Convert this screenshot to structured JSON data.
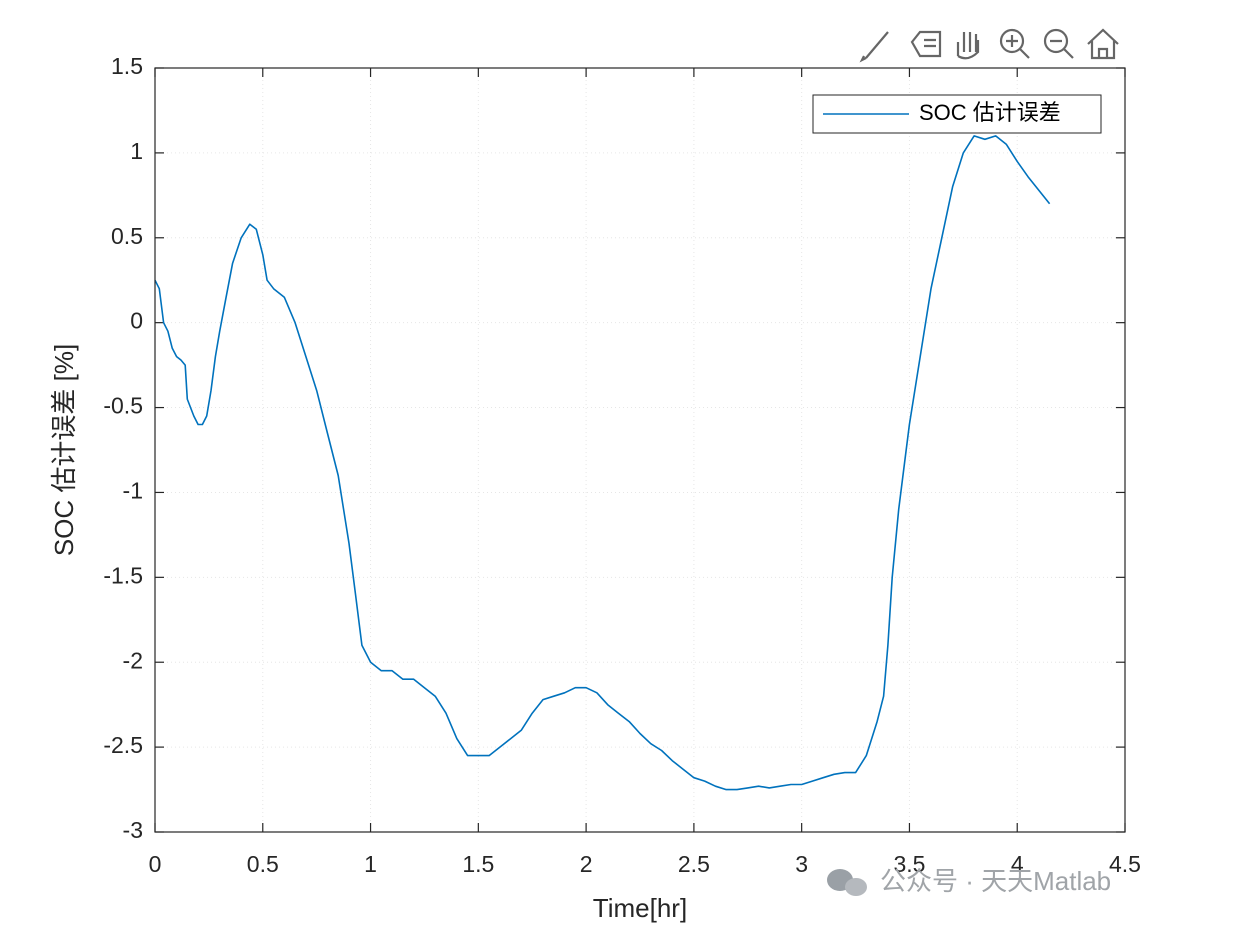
{
  "chart_data": {
    "type": "line",
    "xlabel": "Time[hr]",
    "ylabel": "SOC 估计误差 [%]",
    "watermark": "公众号 · 天天Matlab",
    "x": [
      0,
      0.02,
      0.04,
      0.06,
      0.08,
      0.1,
      0.12,
      0.14,
      0.15,
      0.18,
      0.2,
      0.22,
      0.24,
      0.26,
      0.28,
      0.3,
      0.33,
      0.36,
      0.4,
      0.44,
      0.47,
      0.5,
      0.52,
      0.55,
      0.6,
      0.65,
      0.7,
      0.75,
      0.8,
      0.85,
      0.9,
      0.93,
      0.96,
      1.0,
      1.05,
      1.1,
      1.15,
      1.2,
      1.25,
      1.3,
      1.35,
      1.4,
      1.45,
      1.5,
      1.55,
      1.6,
      1.65,
      1.7,
      1.75,
      1.8,
      1.85,
      1.9,
      1.95,
      2.0,
      2.05,
      2.1,
      2.15,
      2.2,
      2.25,
      2.3,
      2.35,
      2.4,
      2.45,
      2.5,
      2.55,
      2.6,
      2.65,
      2.7,
      2.75,
      2.8,
      2.85,
      2.9,
      2.95,
      3.0,
      3.05,
      3.1,
      3.15,
      3.2,
      3.25,
      3.3,
      3.35,
      3.38,
      3.4,
      3.42,
      3.45,
      3.48,
      3.5,
      3.55,
      3.6,
      3.65,
      3.7,
      3.75,
      3.8,
      3.85,
      3.9,
      3.95,
      4.0,
      4.05,
      4.1,
      4.15
    ],
    "series": [
      {
        "name": "SOC 估计误差",
        "color": "#0072bd",
        "values": [
          0.25,
          0.2,
          0.0,
          -0.05,
          -0.15,
          -0.2,
          -0.22,
          -0.25,
          -0.45,
          -0.55,
          -0.6,
          -0.6,
          -0.55,
          -0.4,
          -0.2,
          -0.05,
          0.15,
          0.35,
          0.5,
          0.58,
          0.55,
          0.4,
          0.25,
          0.2,
          0.15,
          0.0,
          -0.2,
          -0.4,
          -0.65,
          -0.9,
          -1.3,
          -1.6,
          -1.9,
          -2.0,
          -2.05,
          -2.05,
          -2.1,
          -2.1,
          -2.15,
          -2.2,
          -2.3,
          -2.45,
          -2.55,
          -2.55,
          -2.55,
          -2.5,
          -2.45,
          -2.4,
          -2.3,
          -2.22,
          -2.2,
          -2.18,
          -2.15,
          -2.15,
          -2.18,
          -2.25,
          -2.3,
          -2.35,
          -2.42,
          -2.48,
          -2.52,
          -2.58,
          -2.63,
          -2.68,
          -2.7,
          -2.73,
          -2.75,
          -2.75,
          -2.74,
          -2.73,
          -2.74,
          -2.73,
          -2.72,
          -2.72,
          -2.7,
          -2.68,
          -2.66,
          -2.65,
          -2.65,
          -2.55,
          -2.35,
          -2.2,
          -1.9,
          -1.5,
          -1.1,
          -0.8,
          -0.6,
          -0.2,
          0.2,
          0.5,
          0.8,
          1.0,
          1.1,
          1.08,
          1.1,
          1.05,
          0.95,
          0.86,
          0.78,
          0.7
        ]
      }
    ],
    "xlim": [
      0,
      4.5
    ],
    "xticks": [
      0,
      0.5,
      1,
      1.5,
      2,
      2.5,
      3,
      3.5,
      4,
      4.5
    ],
    "ylim": [
      -3,
      1.5
    ],
    "yticks": [
      -3,
      -2.5,
      -2,
      -1.5,
      -1,
      -0.5,
      0,
      0.5,
      1,
      1.5
    ],
    "grid": true,
    "legend": "northeast"
  }
}
